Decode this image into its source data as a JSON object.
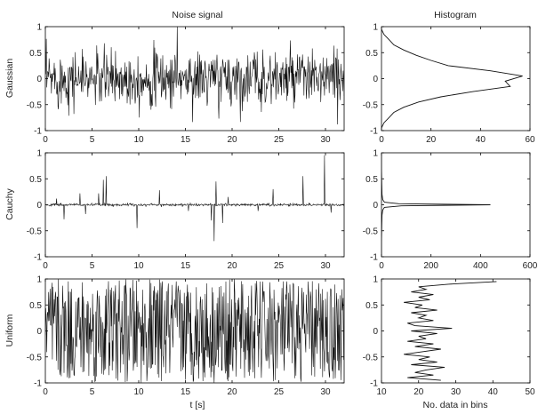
{
  "chart_data": [
    {
      "type": "line",
      "title": "Noise signal",
      "ylabel": "Gaussian",
      "xlabel": "",
      "xlim": [
        0,
        32
      ],
      "ylim": [
        -1,
        1
      ],
      "xticks": [
        "0",
        "5",
        "10",
        "15",
        "20",
        "25",
        "30"
      ],
      "yticks": [
        "1",
        "0.5",
        "0",
        "-0.5",
        "-1"
      ],
      "signal": {
        "distribution": "gaussian",
        "duration": 32,
        "samples": 640,
        "std": 0.27,
        "peaks": [
          [
            14.1,
            1.0
          ],
          [
            31.3,
            -0.88
          ]
        ]
      }
    },
    {
      "type": "line",
      "title": "Histogram",
      "xlabel": "",
      "xlim": [
        0,
        60
      ],
      "ylim": [
        -1,
        1
      ],
      "xticks": [
        "0",
        "20",
        "40",
        "60"
      ],
      "yticks": [
        "1",
        "0.5",
        "0",
        "-0.5",
        "-1"
      ],
      "profile": {
        "y": [
          -0.95,
          -0.85,
          -0.75,
          -0.65,
          -0.55,
          -0.45,
          -0.35,
          -0.25,
          -0.15,
          -0.05,
          0.05,
          0.15,
          0.25,
          0.35,
          0.45,
          0.55,
          0.65,
          0.75,
          0.85,
          0.95
        ],
        "counts": [
          0,
          1,
          3,
          5,
          9,
          15,
          24,
          37,
          52,
          50,
          57,
          44,
          27,
          20,
          14,
          9,
          5,
          3,
          1,
          0
        ]
      }
    },
    {
      "type": "line",
      "ylabel": "Cauchy",
      "xlabel": "",
      "xlim": [
        0,
        32
      ],
      "ylim": [
        -1,
        1
      ],
      "xticks": [
        "0",
        "5",
        "10",
        "15",
        "20",
        "25",
        "30"
      ],
      "yticks": [
        "1",
        "0.5",
        "0",
        "-0.5",
        "-1"
      ],
      "spikes": [
        [
          1.2,
          0.12
        ],
        [
          2.0,
          -0.28
        ],
        [
          3.7,
          0.22
        ],
        [
          4.3,
          -0.18
        ],
        [
          5.7,
          0.22
        ],
        [
          6.2,
          0.48
        ],
        [
          6.5,
          0.55
        ],
        [
          9.8,
          -0.45
        ],
        [
          12.2,
          0.28
        ],
        [
          15.3,
          -0.12
        ],
        [
          17.8,
          -0.3
        ],
        [
          18.1,
          -0.7
        ],
        [
          18.3,
          0.45
        ],
        [
          19.0,
          -0.35
        ],
        [
          19.6,
          0.15
        ],
        [
          22.8,
          -0.12
        ],
        [
          24.4,
          0.3
        ],
        [
          27.6,
          0.55
        ],
        [
          29.9,
          0.95
        ],
        [
          30.6,
          -0.15
        ]
      ]
    },
    {
      "type": "line",
      "xlabel": "",
      "xlim": [
        0,
        600
      ],
      "ylim": [
        -1,
        1
      ],
      "xticks": [
        "0",
        "200",
        "400",
        "600"
      ],
      "yticks": [
        "1",
        "0.5",
        "0",
        "-0.5",
        "-1"
      ],
      "profile": {
        "y": [
          -0.95,
          -0.7,
          -0.4,
          -0.2,
          -0.1,
          -0.05,
          -0.02,
          0.0,
          0.02,
          0.05,
          0.1,
          0.2,
          0.4,
          0.7,
          0.95
        ],
        "counts": [
          0,
          0,
          1,
          2,
          5,
          12,
          80,
          440,
          70,
          12,
          5,
          2,
          1,
          0,
          0
        ]
      }
    },
    {
      "type": "line",
      "ylabel": "Uniform",
      "xlabel": "t [s]",
      "xlim": [
        0,
        32
      ],
      "ylim": [
        -1,
        1
      ],
      "xticks": [
        "0",
        "5",
        "10",
        "15",
        "20",
        "25",
        "30"
      ],
      "yticks": [
        "1",
        "0.5",
        "0",
        "-0.5",
        "-1"
      ],
      "signal": {
        "distribution": "uniform",
        "duration": 32,
        "samples": 640,
        "range": [
          -1,
          1
        ]
      }
    },
    {
      "type": "line",
      "xlabel": "No. data in bins",
      "xlim": [
        10,
        50
      ],
      "ylim": [
        -1,
        1
      ],
      "xticks": [
        "10",
        "20",
        "30",
        "40",
        "50"
      ],
      "yticks": [
        "1",
        "0.5",
        "0",
        "-0.5",
        "-1"
      ],
      "profile": {
        "y": [
          -0.95,
          -0.9,
          -0.85,
          -0.8,
          -0.75,
          -0.7,
          -0.65,
          -0.6,
          -0.55,
          -0.5,
          -0.45,
          -0.4,
          -0.35,
          -0.3,
          -0.25,
          -0.2,
          -0.15,
          -0.1,
          -0.05,
          0.0,
          0.05,
          0.1,
          0.15,
          0.2,
          0.25,
          0.3,
          0.35,
          0.4,
          0.45,
          0.5,
          0.55,
          0.6,
          0.65,
          0.7,
          0.75,
          0.8,
          0.85,
          0.9,
          0.95
        ],
        "counts": [
          26,
          17,
          24,
          19,
          22,
          27,
          18,
          25,
          20,
          23,
          16,
          21,
          26,
          19,
          24,
          17,
          22,
          20,
          25,
          18,
          29,
          19,
          17,
          24,
          20,
          22,
          18,
          25,
          19,
          21,
          16,
          23,
          20,
          24,
          18,
          22,
          20,
          28,
          41
        ]
      }
    }
  ]
}
